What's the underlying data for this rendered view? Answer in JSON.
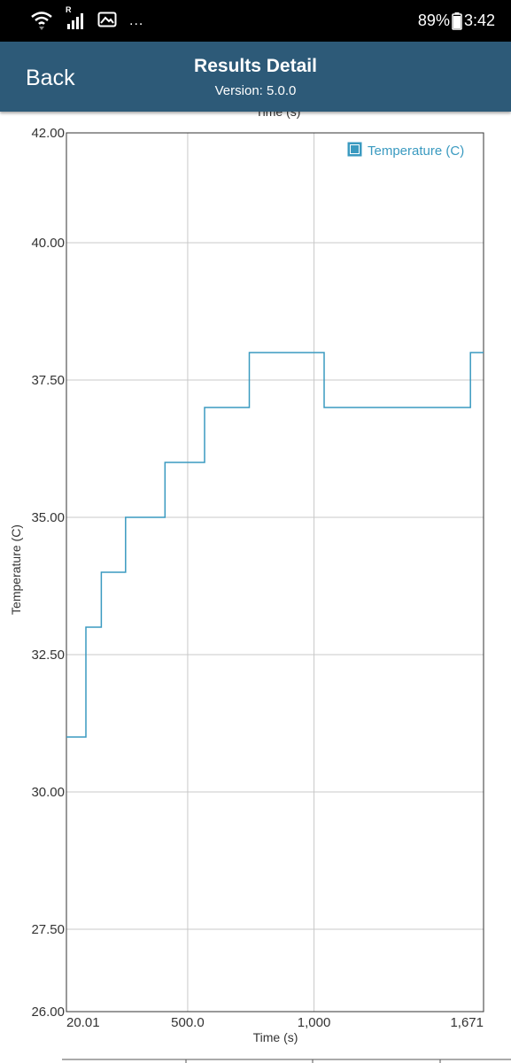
{
  "status_bar": {
    "battery": "89%",
    "time": "3:42",
    "roaming": "R",
    "more": "...",
    "icons": [
      "wifi-icon",
      "signal-icon",
      "gallery-icon",
      "battery-icon"
    ]
  },
  "header": {
    "back_label": "Back",
    "title": "Results Detail",
    "version": "Version: 5.0.0",
    "background": "#2d5a78"
  },
  "top_axis_label": "Time (s)",
  "chart_data": {
    "type": "line",
    "xlabel": "Time (s)",
    "ylabel": "Temperature (C)",
    "x_tick_labels": [
      "20.01",
      "500.0",
      "1,000",
      "1,671"
    ],
    "x_tick_values": [
      20.01,
      500,
      1000,
      1671
    ],
    "xlim": [
      20.01,
      1671
    ],
    "y_tick_labels": [
      "26.00",
      "27.50",
      "30.00",
      "32.50",
      "35.00",
      "37.50",
      "40.00",
      "42.00"
    ],
    "y_tick_values": [
      26,
      27.5,
      30,
      32.5,
      35,
      37.5,
      40,
      42
    ],
    "ylim": [
      26,
      42
    ],
    "grid": true,
    "legend_position": "top-right",
    "series": [
      {
        "name": "Temperature (C)",
        "color": "#3a9ac0",
        "step_points": [
          [
            20.01,
            31
          ],
          [
            97,
            31
          ],
          [
            97,
            33
          ],
          [
            158,
            33
          ],
          [
            158,
            34
          ],
          [
            254,
            34
          ],
          [
            254,
            35
          ],
          [
            410,
            35
          ],
          [
            410,
            36
          ],
          [
            567,
            36
          ],
          [
            567,
            37
          ],
          [
            744,
            37
          ],
          [
            744,
            38
          ],
          [
            1040,
            38
          ],
          [
            1040,
            37
          ],
          [
            1619,
            37
          ],
          [
            1619,
            38
          ],
          [
            1671,
            38
          ]
        ]
      }
    ]
  }
}
